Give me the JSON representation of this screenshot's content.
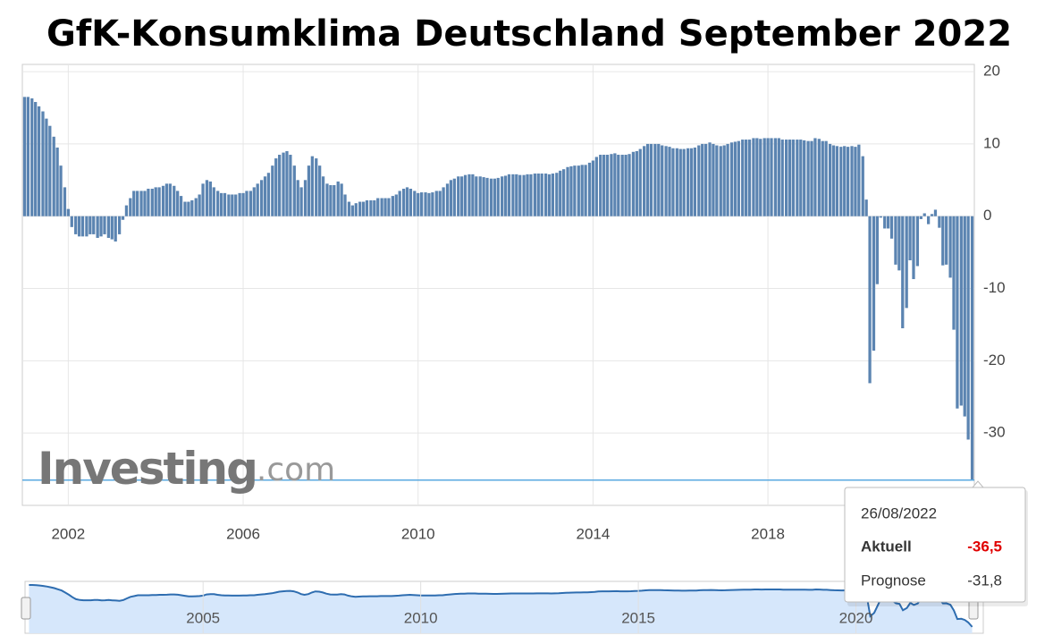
{
  "chart_data": {
    "type": "bar",
    "title": "GfK-Konsumklima Deutschland September 2022",
    "color": "#5b84b1",
    "xlim": [
      2000.95,
      2022.72
    ],
    "xticks": [
      2002,
      2006,
      2010,
      2014,
      2018
    ],
    "ylim": [
      -40,
      21
    ],
    "yticks": [
      20,
      10,
      0,
      -10,
      -20,
      -30
    ],
    "grid": true,
    "x": [
      2001,
      2001.08,
      2001.17,
      2001.25,
      2001.33,
      2001.42,
      2001.5,
      2001.58,
      2001.67,
      2001.75,
      2001.83,
      2001.92,
      2002,
      2002.08,
      2002.17,
      2002.25,
      2002.33,
      2002.42,
      2002.5,
      2002.58,
      2002.67,
      2002.75,
      2002.83,
      2002.92,
      2003,
      2003.08,
      2003.17,
      2003.25,
      2003.33,
      2003.42,
      2003.5,
      2003.58,
      2003.67,
      2003.75,
      2003.83,
      2003.92,
      2004,
      2004.08,
      2004.17,
      2004.25,
      2004.33,
      2004.42,
      2004.5,
      2004.58,
      2004.67,
      2004.75,
      2004.83,
      2004.92,
      2005,
      2005.08,
      2005.17,
      2005.25,
      2005.33,
      2005.42,
      2005.5,
      2005.58,
      2005.67,
      2005.75,
      2005.83,
      2005.92,
      2006,
      2006.08,
      2006.17,
      2006.25,
      2006.33,
      2006.42,
      2006.5,
      2006.58,
      2006.67,
      2006.75,
      2006.83,
      2006.92,
      2007,
      2007.08,
      2007.17,
      2007.25,
      2007.33,
      2007.42,
      2007.5,
      2007.58,
      2007.67,
      2007.75,
      2007.83,
      2007.92,
      2008,
      2008.08,
      2008.17,
      2008.25,
      2008.33,
      2008.42,
      2008.5,
      2008.58,
      2008.67,
      2008.75,
      2008.83,
      2008.92,
      2009,
      2009.08,
      2009.17,
      2009.25,
      2009.33,
      2009.42,
      2009.5,
      2009.58,
      2009.67,
      2009.75,
      2009.83,
      2009.92,
      2010,
      2010.08,
      2010.17,
      2010.25,
      2010.33,
      2010.42,
      2010.5,
      2010.58,
      2010.67,
      2010.75,
      2010.83,
      2010.92,
      2011,
      2011.08,
      2011.17,
      2011.25,
      2011.33,
      2011.42,
      2011.5,
      2011.58,
      2011.67,
      2011.75,
      2011.83,
      2011.92,
      2012,
      2012.08,
      2012.17,
      2012.25,
      2012.33,
      2012.42,
      2012.5,
      2012.58,
      2012.67,
      2012.75,
      2012.83,
      2012.92,
      2013,
      2013.08,
      2013.17,
      2013.25,
      2013.33,
      2013.42,
      2013.5,
      2013.58,
      2013.67,
      2013.75,
      2013.83,
      2013.92,
      2014,
      2014.08,
      2014.17,
      2014.25,
      2014.33,
      2014.42,
      2014.5,
      2014.58,
      2014.67,
      2014.75,
      2014.83,
      2014.92,
      2015,
      2015.08,
      2015.17,
      2015.25,
      2015.33,
      2015.42,
      2015.5,
      2015.58,
      2015.67,
      2015.75,
      2015.83,
      2015.92,
      2016,
      2016.08,
      2016.17,
      2016.25,
      2016.33,
      2016.42,
      2016.5,
      2016.58,
      2016.67,
      2016.75,
      2016.83,
      2016.92,
      2017,
      2017.08,
      2017.17,
      2017.25,
      2017.33,
      2017.42,
      2017.5,
      2017.58,
      2017.67,
      2017.75,
      2017.83,
      2017.92,
      2018,
      2018.08,
      2018.17,
      2018.25,
      2018.33,
      2018.42,
      2018.5,
      2018.58,
      2018.67,
      2018.75,
      2018.83,
      2018.92,
      2019,
      2019.08,
      2019.17,
      2019.25,
      2019.33,
      2019.42,
      2019.5,
      2019.58,
      2019.67,
      2019.75,
      2019.83,
      2019.92,
      2020,
      2020.08,
      2020.17,
      2020.25,
      2020.33,
      2020.42,
      2020.5,
      2020.58,
      2020.67,
      2020.75,
      2020.83,
      2020.92,
      2021,
      2021.08,
      2021.17,
      2021.25,
      2021.33,
      2021.42,
      2021.5,
      2021.58,
      2021.67,
      2021.75,
      2021.83,
      2021.92,
      2022,
      2022.08,
      2022.17,
      2022.25,
      2022.33,
      2022.42,
      2022.5,
      2022.58,
      2022.67
    ],
    "values": [
      16.5,
      16.5,
      16.3,
      15.8,
      15.2,
      14.5,
      13.5,
      12.5,
      11,
      9.5,
      7,
      4,
      1,
      -1.5,
      -2.5,
      -2.8,
      -2.8,
      -2.8,
      -2.5,
      -2.5,
      -3,
      -2.8,
      -2.5,
      -3,
      -3.2,
      -3.5,
      -2.5,
      -0.5,
      1.5,
      2.5,
      3.5,
      3.5,
      3.5,
      3.5,
      3.8,
      3.8,
      4,
      4,
      4.2,
      4.5,
      4.5,
      4.2,
      3.5,
      2.8,
      2,
      2,
      2.2,
      2.5,
      3,
      4.5,
      5,
      4.8,
      4,
      3.5,
      3.2,
      3.2,
      3,
      3,
      3,
      3.2,
      3.2,
      3.5,
      3.5,
      4,
      4.5,
      5,
      5.5,
      6,
      7,
      8,
      8.5,
      8.8,
      9,
      8.5,
      7,
      5,
      4,
      5,
      7,
      8.3,
      8,
      7,
      5.5,
      4.5,
      4.3,
      4.3,
      4.8,
      4.5,
      3,
      2,
      1.5,
      1.8,
      2,
      2,
      2.2,
      2.2,
      2.2,
      2.5,
      2.5,
      2.5,
      2.5,
      2.8,
      3,
      3.5,
      3.8,
      4,
      3.8,
      3.5,
      3.2,
      3.3,
      3.3,
      3.2,
      3.3,
      3.5,
      3.5,
      4,
      4.5,
      5,
      5.2,
      5.5,
      5.5,
      5.7,
      5.8,
      5.8,
      5.5,
      5.5,
      5.4,
      5.3,
      5.2,
      5.2,
      5.3,
      5.5,
      5.6,
      5.8,
      5.8,
      5.8,
      5.7,
      5.7,
      5.8,
      5.8,
      5.9,
      5.9,
      5.9,
      5.9,
      5.8,
      5.9,
      6,
      6.3,
      6.5,
      6.8,
      6.9,
      7,
      7,
      7.1,
      7.1,
      7.4,
      7.7,
      8.2,
      8.5,
      8.5,
      8.5,
      8.6,
      8.7,
      8.5,
      8.5,
      8.5,
      8.6,
      8.9,
      9,
      9.3,
      9.7,
      10,
      10,
      10,
      10,
      9.8,
      9.7,
      9.6,
      9.4,
      9.4,
      9.3,
      9.3,
      9.4,
      9.4,
      9.5,
      9.8,
      10,
      10,
      10.2,
      10,
      9.8,
      9.7,
      9.8,
      10,
      10.2,
      10.3,
      10.4,
      10.6,
      10.6,
      10.6,
      10.8,
      10.8,
      10.7,
      10.8,
      10.8,
      10.8,
      10.8,
      10.8,
      10.6,
      10.6,
      10.6,
      10.6,
      10.6,
      10.6,
      10.5,
      10.4,
      10.4,
      10.8,
      10.7,
      10.4,
      10.4,
      10,
      9.8,
      9.7,
      9.6,
      9.7,
      9.6,
      9.7,
      9.6,
      9.9,
      8.3,
      2.3,
      -23.1,
      -18.6,
      -9.4,
      -0.2,
      -1.7,
      -1.7,
      -3.1,
      -6.7,
      -7.5,
      -15.5,
      -12.7,
      -6.1,
      -8.7,
      -6.9,
      -0.4,
      0.4,
      -1.1,
      0.3,
      0.9,
      -1.6,
      -6.8,
      -6.7,
      -8.5,
      -15.7,
      -26.6,
      -26.2,
      -27.7,
      -30.9,
      -36.5
    ],
    "watermark": {
      "brand": "Investing",
      "suffix": ".com"
    },
    "tooltip": {
      "date": "26/08/2022",
      "rows": [
        {
          "label": "Aktuell",
          "value": "-36,5"
        },
        {
          "label": "Prognose",
          "value": "-31,8"
        }
      ]
    },
    "navigator": {
      "xticks": [
        2005,
        2010,
        2015,
        2020
      ]
    }
  }
}
